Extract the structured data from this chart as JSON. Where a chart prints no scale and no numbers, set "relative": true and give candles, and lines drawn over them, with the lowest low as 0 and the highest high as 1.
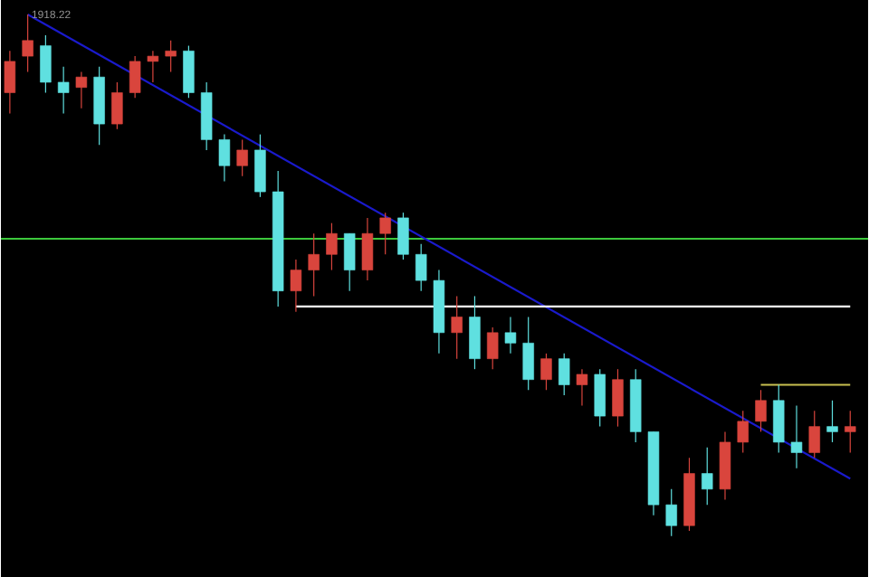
{
  "chart_data": {
    "type": "candlestick",
    "relative": true,
    "categories": [
      null,
      null,
      null,
      null,
      null,
      null,
      null,
      null,
      null,
      null,
      null,
      null,
      null,
      null,
      null,
      null,
      null,
      null,
      null,
      null,
      null,
      null,
      null,
      null,
      null,
      null,
      null,
      null,
      null,
      null,
      null,
      null,
      null,
      null,
      null,
      null,
      null,
      null,
      null,
      null,
      null,
      null,
      null,
      null,
      null,
      null,
      null,
      null
    ],
    "ohlc": [
      [
        0.85,
        0.93,
        0.81,
        0.91
      ],
      [
        0.92,
        1.0,
        0.89,
        0.95
      ],
      [
        0.94,
        0.96,
        0.85,
        0.87
      ],
      [
        0.87,
        0.9,
        0.81,
        0.85
      ],
      [
        0.86,
        0.89,
        0.82,
        0.88
      ],
      [
        0.88,
        0.9,
        0.75,
        0.79
      ],
      [
        0.79,
        0.87,
        0.78,
        0.85
      ],
      [
        0.85,
        0.92,
        0.84,
        0.91
      ],
      [
        0.91,
        0.93,
        0.87,
        0.92
      ],
      [
        0.92,
        0.95,
        0.89,
        0.93
      ],
      [
        0.93,
        0.94,
        0.84,
        0.85
      ],
      [
        0.85,
        0.87,
        0.74,
        0.76
      ],
      [
        0.76,
        0.77,
        0.68,
        0.71
      ],
      [
        0.71,
        0.76,
        0.69,
        0.74
      ],
      [
        0.74,
        0.77,
        0.65,
        0.66
      ],
      [
        0.66,
        0.7,
        0.44,
        0.47
      ],
      [
        0.47,
        0.53,
        0.43,
        0.51
      ],
      [
        0.51,
        0.58,
        0.46,
        0.54
      ],
      [
        0.54,
        0.6,
        0.51,
        0.58
      ],
      [
        0.58,
        0.58,
        0.47,
        0.51
      ],
      [
        0.51,
        0.61,
        0.49,
        0.58
      ],
      [
        0.58,
        0.62,
        0.54,
        0.61
      ],
      [
        0.61,
        0.62,
        0.53,
        0.54
      ],
      [
        0.54,
        0.56,
        0.47,
        0.49
      ],
      [
        0.49,
        0.51,
        0.35,
        0.39
      ],
      [
        0.39,
        0.46,
        0.34,
        0.42
      ],
      [
        0.42,
        0.46,
        0.32,
        0.34
      ],
      [
        0.34,
        0.4,
        0.32,
        0.39
      ],
      [
        0.39,
        0.42,
        0.35,
        0.37
      ],
      [
        0.37,
        0.42,
        0.28,
        0.3
      ],
      [
        0.3,
        0.35,
        0.28,
        0.34
      ],
      [
        0.34,
        0.35,
        0.27,
        0.29
      ],
      [
        0.29,
        0.32,
        0.25,
        0.31
      ],
      [
        0.31,
        0.32,
        0.21,
        0.23
      ],
      [
        0.23,
        0.32,
        0.21,
        0.3
      ],
      [
        0.3,
        0.32,
        0.18,
        0.2
      ],
      [
        0.2,
        0.2,
        0.04,
        0.06
      ],
      [
        0.06,
        0.09,
        0.0,
        0.02
      ],
      [
        0.02,
        0.15,
        0.01,
        0.12
      ],
      [
        0.12,
        0.17,
        0.06,
        0.09
      ],
      [
        0.09,
        0.2,
        0.07,
        0.18
      ],
      [
        0.18,
        0.24,
        0.16,
        0.22
      ],
      [
        0.22,
        0.28,
        0.2,
        0.26
      ],
      [
        0.26,
        0.29,
        0.16,
        0.18
      ],
      [
        0.18,
        0.25,
        0.13,
        0.16
      ],
      [
        0.16,
        0.24,
        0.15,
        0.21
      ],
      [
        0.21,
        0.26,
        0.18,
        0.2
      ],
      [
        0.2,
        0.24,
        0.16,
        0.21
      ]
    ],
    "colors": [
      "#d9453d",
      "#d9453d",
      "#5fe0e0",
      "#5fe0e0",
      "#d9453d",
      "#5fe0e0",
      "#d9453d",
      "#d9453d",
      "#d9453d",
      "#d9453d",
      "#5fe0e0",
      "#5fe0e0",
      "#5fe0e0",
      "#d9453d",
      "#5fe0e0",
      "#5fe0e0",
      "#d9453d",
      "#d9453d",
      "#d9453d",
      "#5fe0e0",
      "#d9453d",
      "#d9453d",
      "#5fe0e0",
      "#5fe0e0",
      "#5fe0e0",
      "#d9453d",
      "#5fe0e0",
      "#d9453d",
      "#5fe0e0",
      "#5fe0e0",
      "#d9453d",
      "#5fe0e0",
      "#d9453d",
      "#5fe0e0",
      "#d9453d",
      "#5fe0e0",
      "#5fe0e0",
      "#5fe0e0",
      "#d9453d",
      "#5fe0e0",
      "#d9453d",
      "#d9453d",
      "#d9453d",
      "#5fe0e0",
      "#5fe0e0",
      "#d9453d",
      "#5fe0e0",
      "#d9453d"
    ],
    "series": [
      {
        "type": "line",
        "color": "#1a1acc",
        "values": [
          null,
          1.0,
          null,
          null,
          null,
          null,
          null,
          null,
          null,
          null,
          null,
          null,
          null,
          null,
          null,
          null,
          null,
          null,
          null,
          null,
          null,
          null,
          null,
          null,
          null,
          null,
          null,
          null,
          null,
          null,
          null,
          null,
          null,
          null,
          null,
          null,
          null,
          null,
          null,
          null,
          null,
          null,
          null,
          null,
          null,
          null,
          null,
          0.11
        ]
      },
      {
        "type": "line",
        "color": "#ffffff",
        "values": [
          null,
          null,
          null,
          null,
          null,
          null,
          null,
          null,
          null,
          null,
          null,
          null,
          null,
          null,
          null,
          null,
          0.44,
          null,
          null,
          null,
          null,
          null,
          null,
          null,
          null,
          null,
          null,
          null,
          null,
          null,
          null,
          null,
          null,
          null,
          null,
          null,
          null,
          null,
          null,
          null,
          null,
          null,
          null,
          null,
          null,
          null,
          null,
          0.44
        ]
      },
      {
        "type": "line",
        "color": "#c8c050",
        "values": [
          null,
          null,
          null,
          null,
          null,
          null,
          null,
          null,
          null,
          null,
          null,
          null,
          null,
          null,
          null,
          null,
          null,
          null,
          null,
          null,
          null,
          null,
          null,
          null,
          null,
          null,
          null,
          null,
          null,
          null,
          null,
          null,
          null,
          null,
          null,
          null,
          null,
          null,
          null,
          null,
          null,
          null,
          0.29,
          null,
          null,
          null,
          null,
          0.29
        ]
      }
    ],
    "ref_lines": [
      {
        "axis": "y",
        "value": 0.57,
        "color": "#3cc83c"
      }
    ],
    "annotations": [
      "1918.22"
    ]
  }
}
